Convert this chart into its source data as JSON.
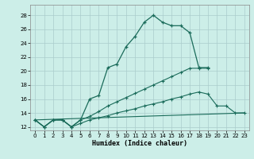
{
  "xlabel": "Humidex (Indice chaleur)",
  "bg_color": "#cceee8",
  "grid_color": "#aacccc",
  "line_color": "#1a6b5a",
  "xlim": [
    -0.5,
    23.5
  ],
  "ylim": [
    11.5,
    29.5
  ],
  "yticks": [
    12,
    14,
    16,
    18,
    20,
    22,
    24,
    26,
    28
  ],
  "xticks": [
    0,
    1,
    2,
    3,
    4,
    5,
    6,
    7,
    8,
    9,
    10,
    11,
    12,
    13,
    14,
    15,
    16,
    17,
    18,
    19,
    20,
    21,
    22,
    23
  ],
  "series": [
    {
      "x": [
        0,
        1,
        2,
        3,
        4,
        5,
        6,
        7,
        8,
        9,
        10,
        11,
        12,
        13,
        14,
        15,
        16,
        17,
        18,
        19
      ],
      "y": [
        13,
        12,
        13,
        13,
        12,
        13,
        16,
        16.5,
        20.5,
        21,
        23.5,
        25,
        27,
        28,
        27,
        26.5,
        26.5,
        25.5,
        20.5,
        20.5
      ]
    },
    {
      "x": [
        0,
        1,
        2,
        3,
        4,
        5,
        6,
        7,
        8,
        9,
        10,
        11,
        12,
        13,
        14,
        15,
        16,
        17,
        18,
        19
      ],
      "y": [
        13,
        12,
        13,
        13,
        12,
        13,
        13.5,
        14.2,
        15.0,
        15.6,
        16.2,
        16.8,
        17.4,
        18.0,
        18.6,
        19.2,
        19.8,
        20.4,
        20.4,
        20.4
      ]
    },
    {
      "x": [
        0,
        1,
        2,
        3,
        4,
        5,
        6,
        7,
        8,
        9,
        10,
        11,
        12,
        13,
        14,
        15,
        16,
        17,
        18,
        19,
        20,
        21,
        22,
        23
      ],
      "y": [
        13,
        12,
        13,
        13,
        12,
        12.5,
        13.0,
        13.3,
        13.6,
        14.0,
        14.3,
        14.6,
        15.0,
        15.3,
        15.6,
        16.0,
        16.3,
        16.7,
        17.0,
        16.7,
        15.0,
        15.0,
        14.0,
        14.0
      ]
    },
    {
      "x": [
        0,
        23
      ],
      "y": [
        13,
        14
      ]
    }
  ]
}
